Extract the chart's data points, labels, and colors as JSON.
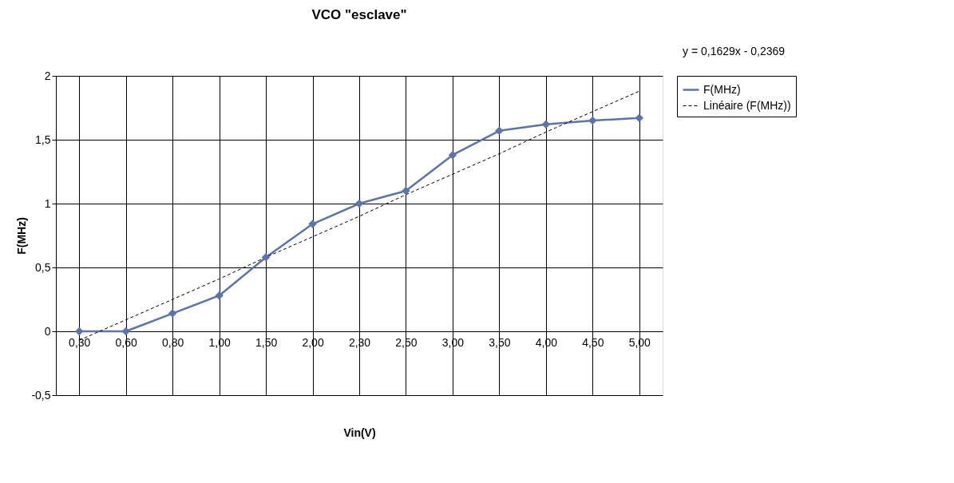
{
  "chart_data": {
    "type": "line",
    "title": "VCO \"esclave\"",
    "xlabel": "Vin(V)",
    "ylabel": "F(MHz)",
    "categories": [
      "0,30",
      "0,60",
      "0,80",
      "1,00",
      "1,50",
      "2,00",
      "2,30",
      "2,50",
      "3,00",
      "3,50",
      "4,00",
      "4,50",
      "5,00"
    ],
    "series": [
      {
        "name": "F(MHz)",
        "color": "#5a74b0",
        "marker": "diamond",
        "line_style": "solid",
        "values": [
          0,
          0,
          0.14,
          0.28,
          0.58,
          0.84,
          1.0,
          1.1,
          1.38,
          1.57,
          1.62,
          1.65,
          1.67
        ]
      },
      {
        "name": "Linéaire (F(MHz))",
        "color": "#000000",
        "marker": "none",
        "line_style": "dashed",
        "values": [
          -0.07,
          0.09,
          0.25,
          0.41,
          0.58,
          0.74,
          0.9,
          1.07,
          1.23,
          1.39,
          1.56,
          1.72,
          1.88
        ]
      }
    ],
    "ylim": [
      -0.5,
      2
    ],
    "yticks": [
      {
        "value": -0.5,
        "label": "-0,5"
      },
      0,
      {
        "value": 0.5,
        "label": "0,5"
      },
      1,
      {
        "value": 1.5,
        "label": "1,5"
      },
      2
    ],
    "annotations": [
      "y = 0,1629x - 0,2369"
    ],
    "grid": true,
    "legend": "right"
  }
}
